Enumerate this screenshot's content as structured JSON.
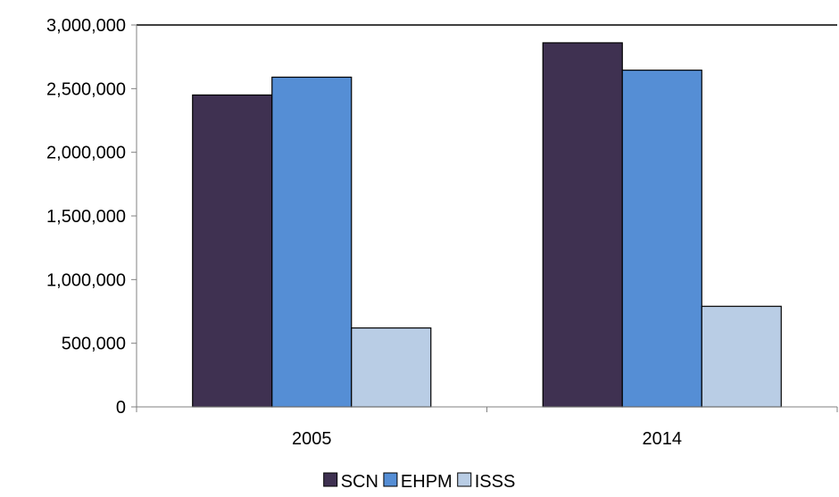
{
  "chart_data": {
    "type": "bar",
    "title": "",
    "xlabel": "",
    "ylabel": "",
    "categories": [
      "2005",
      "2014"
    ],
    "series": [
      {
        "name": "SCN",
        "values": [
          2450000,
          2860000
        ],
        "color": "#3f3151"
      },
      {
        "name": "EHPM",
        "values": [
          2590000,
          2645000
        ],
        "color": "#558ed5"
      },
      {
        "name": "ISSS",
        "values": [
          620000,
          790000
        ],
        "color": "#b9cde5"
      }
    ],
    "ylim": [
      0,
      3000000
    ],
    "yticks": [
      0,
      500000,
      1000000,
      1500000,
      2000000,
      2500000,
      3000000
    ],
    "ytick_labels": [
      "0",
      "500,000",
      "1,000,000",
      "1,500,000",
      "2,000,000",
      "2,500,000",
      "3,000,000"
    ],
    "grid": false,
    "legend_position": "bottom-center"
  }
}
